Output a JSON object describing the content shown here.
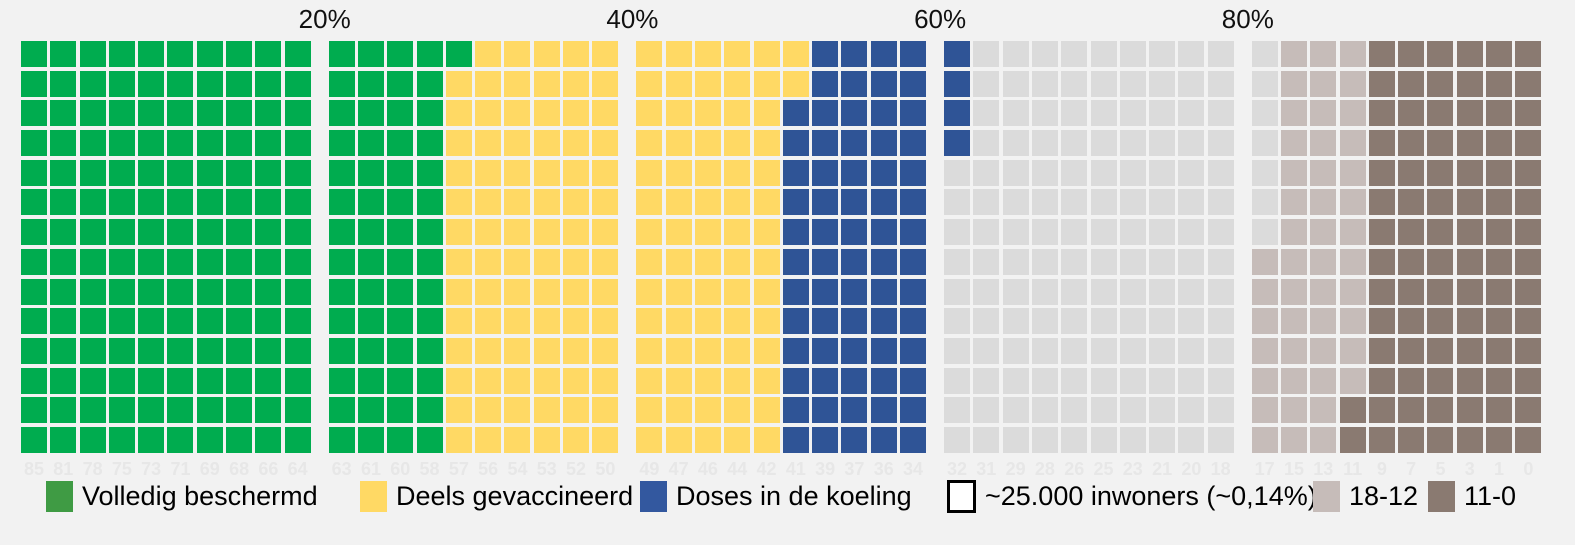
{
  "background_color": "#F2F2F2",
  "chart_data": {
    "type": "waffle",
    "title": "",
    "blocks": 5,
    "cols_per_block": 10,
    "rows_per_block": 14,
    "total_squares": 700,
    "square_meaning": "~25.000 inwoners (~0,14%)",
    "fill_order": "column-major within block, top-to-bottom, blocks left-to-right",
    "top_axis_labels": [
      "20%",
      "40%",
      "60%",
      "80%"
    ],
    "segments": [
      {
        "id": "volledig-beschermd",
        "label": "Volledig beschermd",
        "color": "#00AC4F",
        "squares": 197,
        "percent_est": 28.1
      },
      {
        "id": "deels-gevaccineerd",
        "label": "Deels gevaccineerd",
        "color": "#FFD964",
        "squares": 155,
        "percent_est": 22.1
      },
      {
        "id": "doses-in-de-koeling",
        "label": "Doses in de koeling",
        "color": "#2F5496",
        "squares": 72,
        "percent_est": 10.3
      },
      {
        "id": "remaining-gray",
        "label": "",
        "color": "#DBDBDB",
        "squares": 143,
        "percent_est": 20.4
      },
      {
        "id": "leeftijd-18-12",
        "label": "18-12",
        "color": "#C6BCB9",
        "squares": 47,
        "percent_est": 6.7
      },
      {
        "id": "leeftijd-11-0",
        "label": "11-0",
        "color": "#8A7A71",
        "squares": 86,
        "percent_est": 12.3
      }
    ],
    "column_age_labels": [
      "85",
      "81",
      "78",
      "75",
      "73",
      "71",
      "69",
      "68",
      "66",
      "64",
      "63",
      "61",
      "60",
      "58",
      "57",
      "56",
      "54",
      "53",
      "52",
      "50",
      "49",
      "47",
      "46",
      "44",
      "42",
      "41",
      "39",
      "37",
      "36",
      "34",
      "32",
      "31",
      "29",
      "28",
      "26",
      "25",
      "23",
      "21",
      "20",
      "18",
      "17",
      "15",
      "13",
      "11",
      "9",
      "7",
      "5",
      "3",
      "1",
      "0"
    ]
  },
  "legend": {
    "items": [
      {
        "icon": "legend-swatch-volledig-beschermd",
        "label": "Volledig beschermd",
        "color": "#3F9B44",
        "outlined": false
      },
      {
        "icon": "legend-swatch-deels-gevaccineerd",
        "label": "Deels gevaccineerd",
        "color": "#FFD964",
        "outlined": false
      },
      {
        "icon": "legend-swatch-doses-in-de-koeling",
        "label": "Doses in de koeling",
        "color": "#33589F",
        "outlined": false
      },
      {
        "icon": "legend-swatch-inwoners-eenheid",
        "label": "~25.000 inwoners (~0,14%)",
        "color": "",
        "outlined": true
      },
      {
        "icon": "legend-swatch-18-12",
        "label": "18-12",
        "color": "#C6BCB9",
        "outlined": false
      },
      {
        "icon": "legend-swatch-11-0",
        "label": "11-0",
        "color": "#8A7A71",
        "outlined": false
      }
    ]
  }
}
